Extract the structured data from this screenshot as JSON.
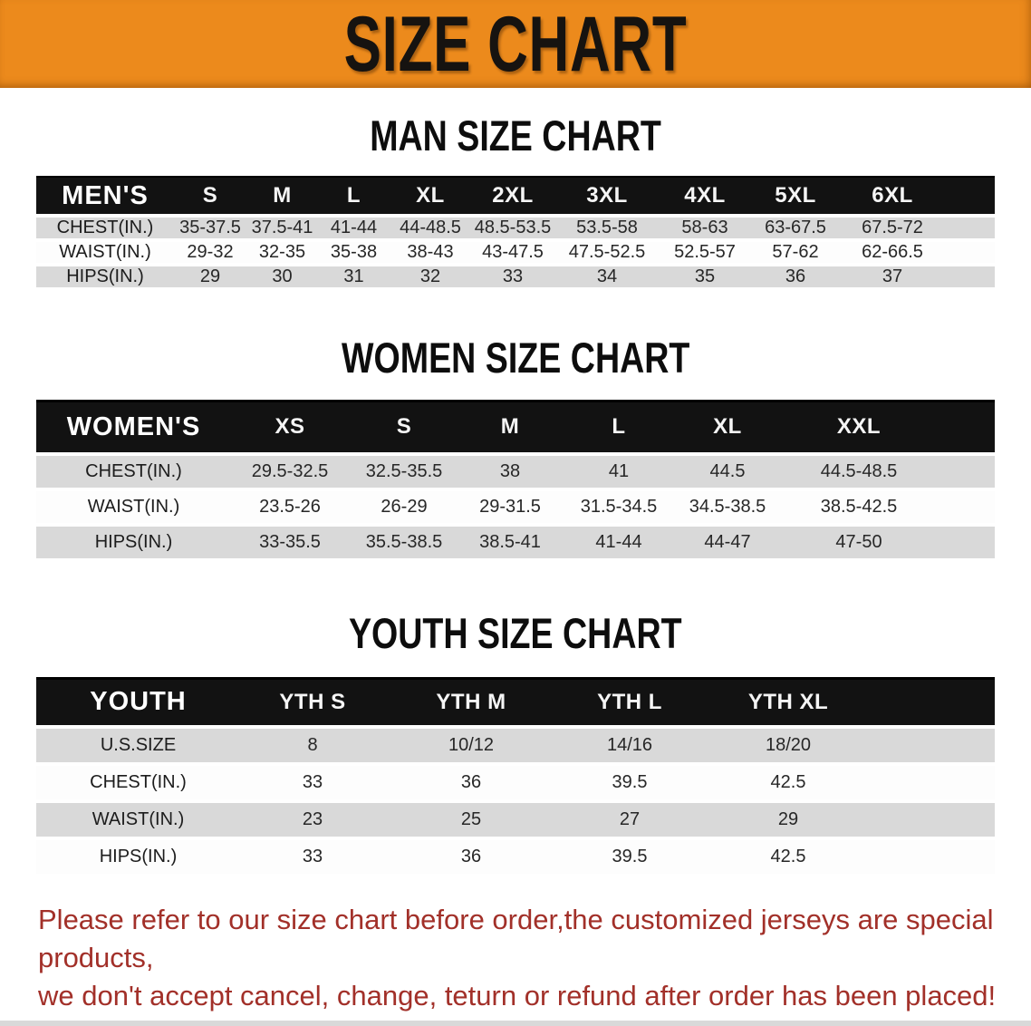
{
  "banner": {
    "title": "SIZE CHART"
  },
  "colors": {
    "banner_orange": "#ec8a1c",
    "header_black": "#121212",
    "row_gray": "#d9d9d9",
    "note_red": "#a23029"
  },
  "sections": [
    {
      "heading": "MAN SIZE CHART",
      "table": {
        "header": [
          "MEN'S",
          "S",
          "M",
          "L",
          "XL",
          "2XL",
          "3XL",
          "4XL",
          "5XL",
          "6XL"
        ],
        "rows": [
          {
            "label": "CHEST(IN.)",
            "values": [
              "35-37.5",
              "37.5-41",
              "41-44",
              "44-48.5",
              "48.5-53.5",
              "53.5-58",
              "58-63",
              "63-67.5",
              "67.5-72"
            ]
          },
          {
            "label": "WAIST(IN.)",
            "values": [
              "29-32",
              "32-35",
              "35-38",
              "38-43",
              "43-47.5",
              "47.5-52.5",
              "52.5-57",
              "57-62",
              "62-66.5"
            ]
          },
          {
            "label": "HIPS(IN.)",
            "values": [
              "29",
              "30",
              "31",
              "32",
              "33",
              "34",
              "35",
              "36",
              "37"
            ]
          }
        ]
      }
    },
    {
      "heading": "WOMEN SIZE CHART",
      "table": {
        "header": [
          "WOMEN'S",
          "XS",
          "S",
          "M",
          "L",
          "XL",
          "XXL"
        ],
        "rows": [
          {
            "label": "CHEST(IN.)",
            "values": [
              "29.5-32.5",
              "32.5-35.5",
              "38",
              "41",
              "44.5",
              "44.5-48.5"
            ]
          },
          {
            "label": "WAIST(IN.)",
            "values": [
              "23.5-26",
              "26-29",
              "29-31.5",
              "31.5-34.5",
              "34.5-38.5",
              "38.5-42.5"
            ]
          },
          {
            "label": "HIPS(IN.)",
            "values": [
              "33-35.5",
              "35.5-38.5",
              "38.5-41",
              "41-44",
              "44-47",
              "47-50"
            ]
          }
        ]
      }
    },
    {
      "heading": "YOUTH SIZE CHART",
      "table": {
        "header": [
          "YOUTH",
          "YTH S",
          "YTH M",
          "YTH L",
          "YTH XL"
        ],
        "rows": [
          {
            "label": "U.S.SIZE",
            "values": [
              "8",
              "10/12",
              "14/16",
              "18/20"
            ]
          },
          {
            "label": "CHEST(IN.)",
            "values": [
              "33",
              "36",
              "39.5",
              "42.5"
            ]
          },
          {
            "label": "WAIST(IN.)",
            "values": [
              "23",
              "25",
              "27",
              "29"
            ]
          },
          {
            "label": "HIPS(IN.)",
            "values": [
              "33",
              "36",
              "39.5",
              "42.5"
            ]
          }
        ]
      }
    }
  ],
  "note": {
    "line1": "Please refer to our size chart before order,the customized jerseys are special products,",
    "line2": "we don't accept cancel, change, teturn or refund after order has been placed!"
  }
}
